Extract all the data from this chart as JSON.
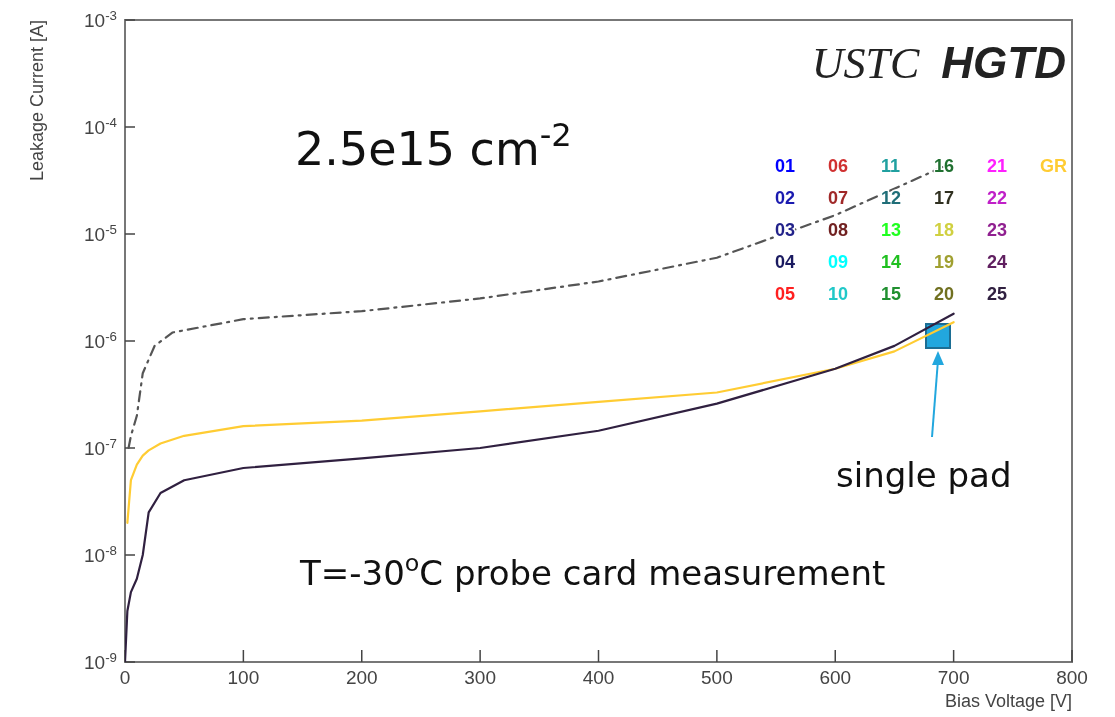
{
  "chart_data": {
    "type": "line",
    "title": "USTC HGTD",
    "xlabel": "Bias Voltage [V]",
    "ylabel": "Leakage Current [A]",
    "log": "y",
    "xlim": [
      0,
      800
    ],
    "xticks": [
      0,
      100,
      200,
      300,
      400,
      500,
      600,
      700,
      800
    ],
    "ylim": [
      1e-09,
      0.001
    ],
    "yticks": [
      {
        "value": 1e-09,
        "label": "10$^{-9}$"
      },
      {
        "value": 1e-08,
        "label": "10$^{-8}$"
      },
      {
        "value": 1e-07,
        "label": "10$^{-7}$"
      },
      {
        "value": 1e-06,
        "label": "10$^{-6}$"
      },
      {
        "value": 1e-05,
        "label": "10$^{-5}$"
      },
      {
        "value": 0.0001,
        "label": "10$^{-4}$"
      },
      {
        "value": 0.001,
        "label": "10$^{-3}$"
      }
    ],
    "grid": false,
    "legend": "top right",
    "marker": "none",
    "x": [
      0,
      2,
      5,
      10,
      15,
      20,
      30,
      50,
      100,
      200,
      300,
      400,
      500,
      600,
      650,
      700
    ],
    "series": [
      {
        "name": "GR",
        "color": "#ffcc33",
        "line_style": "solid",
        "values": [
          null,
          2e-08,
          5e-08,
          7e-08,
          8.5e-08,
          9.5e-08,
          1.1e-07,
          1.3e-07,
          1.6e-07,
          1.8e-07,
          2.2e-07,
          2.7e-07,
          3.3e-07,
          5.5e-07,
          8e-07,
          1.5e-06
        ]
      },
      {
        "color": "#555555",
        "line_style": "dashed",
        "x": [
          3,
          5,
          10,
          15,
          25,
          40,
          100,
          200,
          300,
          400,
          500,
          600,
          700
        ],
        "values": [
          1e-07,
          1.3e-07,
          2e-07,
          5e-07,
          9e-07,
          1.2e-06,
          1.6e-06,
          1.9e-06,
          2.5e-06,
          3.6e-06,
          6e-06,
          1.5e-05,
          4.7e-05
        ]
      },
      {
        "name": "01",
        "color": "#0000ff",
        "values": [
          null,
          null,
          null,
          null,
          null,
          null,
          null,
          null,
          null,
          null,
          null,
          null,
          null,
          null,
          null,
          null
        ]
      },
      {
        "name": "02",
        "color": "#1a1ab0",
        "values": [
          null,
          null,
          null,
          null,
          null,
          null,
          null,
          null,
          null,
          null,
          null,
          null,
          null,
          null,
          null,
          null
        ]
      },
      {
        "name": "03",
        "color": "#22228a",
        "values": [
          null,
          null,
          null,
          null,
          null,
          null,
          null,
          null,
          null,
          null,
          null,
          null,
          null,
          null,
          null,
          null
        ]
      },
      {
        "name": "04",
        "color": "#1a1a60",
        "values": [
          null,
          null,
          null,
          null,
          null,
          null,
          null,
          null,
          null,
          null,
          null,
          null,
          null,
          null,
          null,
          null
        ]
      },
      {
        "name": "05",
        "color": "#ff2020",
        "values": [
          null,
          null,
          null,
          null,
          null,
          null,
          null,
          null,
          null,
          null,
          null,
          null,
          null,
          null,
          null,
          null
        ]
      },
      {
        "name": "06",
        "color": "#d03030",
        "values": [
          null,
          null,
          null,
          null,
          null,
          null,
          null,
          null,
          null,
          null,
          null,
          null,
          null,
          null,
          null,
          null
        ]
      },
      {
        "name": "07",
        "color": "#a02828",
        "values": [
          null,
          null,
          null,
          null,
          null,
          null,
          null,
          null,
          null,
          null,
          null,
          null,
          null,
          null,
          null,
          null
        ]
      },
      {
        "name": "08",
        "color": "#702020",
        "values": [
          null,
          null,
          null,
          null,
          null,
          null,
          null,
          null,
          null,
          null,
          null,
          null,
          null,
          null,
          null,
          null
        ]
      },
      {
        "name": "09",
        "color": "#00ffff",
        "values": [
          null,
          null,
          null,
          null,
          null,
          null,
          null,
          null,
          null,
          null,
          null,
          null,
          null,
          null,
          null,
          null
        ]
      },
      {
        "name": "10",
        "color": "#20c8c8",
        "values": [
          null,
          null,
          null,
          null,
          null,
          null,
          null,
          null,
          null,
          null,
          null,
          null,
          null,
          null,
          null,
          null
        ]
      },
      {
        "name": "11",
        "color": "#20a0a0",
        "values": [
          null,
          null,
          null,
          null,
          null,
          null,
          null,
          null,
          null,
          null,
          null,
          null,
          null,
          null,
          null,
          null
        ]
      },
      {
        "name": "12",
        "color": "#206e78",
        "values": [
          null,
          null,
          null,
          null,
          null,
          null,
          null,
          null,
          null,
          null,
          null,
          null,
          null,
          null,
          null,
          null
        ]
      },
      {
        "name": "13",
        "color": "#20ff20",
        "values": [
          null,
          null,
          null,
          null,
          null,
          null,
          null,
          null,
          null,
          null,
          null,
          null,
          null,
          null,
          null,
          null
        ]
      },
      {
        "name": "14",
        "color": "#20c020",
        "values": [
          null,
          null,
          null,
          null,
          null,
          null,
          null,
          null,
          null,
          null,
          null,
          null,
          null,
          null,
          null,
          null
        ]
      },
      {
        "name": "15",
        "color": "#209030",
        "values": [
          null,
          null,
          null,
          null,
          null,
          null,
          null,
          null,
          null,
          null,
          null,
          null,
          null,
          null,
          null,
          null
        ]
      },
      {
        "name": "16",
        "color": "#207030",
        "values": [
          null,
          null,
          null,
          null,
          null,
          null,
          null,
          null,
          null,
          null,
          null,
          null,
          null,
          null,
          null,
          null
        ]
      },
      {
        "name": "17",
        "color": "#303020",
        "values": [
          null,
          null,
          null,
          null,
          null,
          null,
          null,
          null,
          null,
          null,
          null,
          null,
          null,
          null,
          null,
          null
        ]
      },
      {
        "name": "18",
        "color": "#d0d040",
        "values": [
          null,
          null,
          null,
          null,
          null,
          null,
          null,
          null,
          null,
          null,
          null,
          null,
          null,
          null,
          null,
          null
        ]
      },
      {
        "name": "19",
        "color": "#a0a030",
        "values": [
          null,
          null,
          null,
          null,
          null,
          null,
          null,
          null,
          null,
          null,
          null,
          null,
          null,
          null,
          null,
          null
        ]
      },
      {
        "name": "20",
        "color": "#707020",
        "values": [
          null,
          null,
          null,
          null,
          null,
          null,
          null,
          null,
          null,
          null,
          null,
          null,
          null,
          null,
          null,
          null
        ]
      },
      {
        "name": "21",
        "color": "#ff20ff",
        "values": [
          null,
          null,
          null,
          null,
          null,
          null,
          null,
          null,
          null,
          null,
          null,
          null,
          null,
          null,
          null,
          null
        ]
      },
      {
        "name": "22",
        "color": "#c020c8",
        "values": [
          null,
          null,
          null,
          null,
          null,
          null,
          null,
          null,
          null,
          null,
          null,
          null,
          null,
          null,
          null,
          null
        ]
      },
      {
        "name": "23",
        "color": "#902090",
        "values": [
          null,
          null,
          null,
          null,
          null,
          null,
          null,
          null,
          null,
          null,
          null,
          null,
          null,
          null,
          null,
          null
        ]
      },
      {
        "name": "24",
        "color": "#602060",
        "values": [
          null,
          null,
          null,
          null,
          null,
          null,
          null,
          null,
          null,
          null,
          null,
          null,
          null,
          null,
          null,
          null
        ]
      },
      {
        "name": "25",
        "color": "#302040",
        "values": [
          1e-09,
          3e-09,
          4.5e-09,
          6e-09,
          1e-08,
          2.5e-08,
          3.8e-08,
          5e-08,
          6.5e-08,
          8e-08,
          1e-07,
          1.45e-07,
          2.6e-07,
          5.5e-07,
          9e-07,
          1.8e-06
        ]
      }
    ],
    "annotations": [
      "2.5e15 cm$^{-2}$",
      "T=-30$^{o}$C probe card measurement",
      "single pad"
    ]
  }
}
